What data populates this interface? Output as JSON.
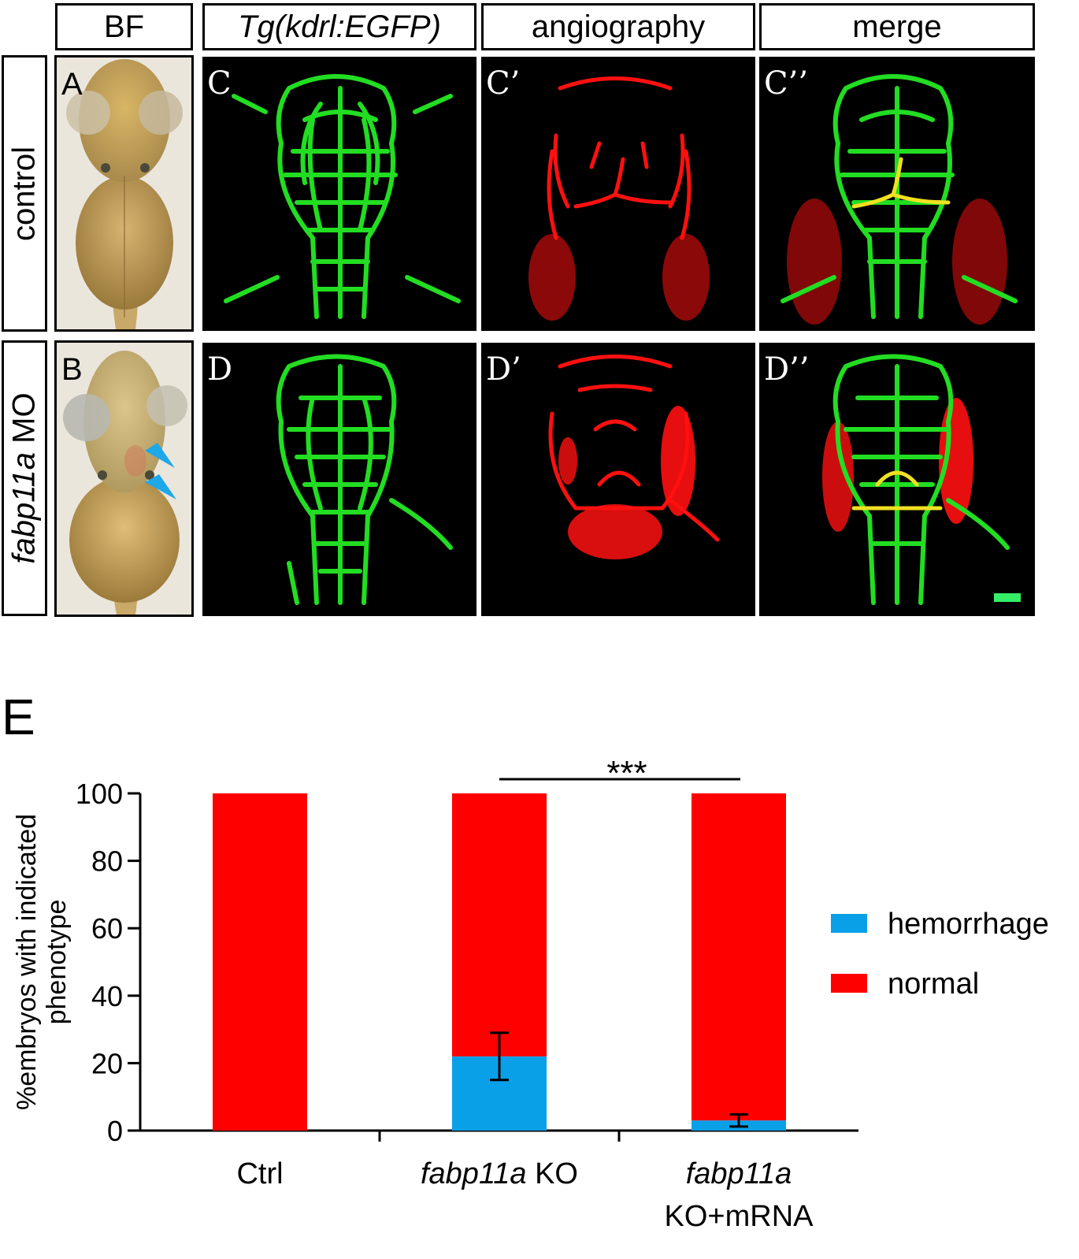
{
  "columns": {
    "bf": "BF",
    "tg": "Tg(kdrl:EGFP)",
    "angio": "angiography",
    "merge": "merge"
  },
  "rows": {
    "control": "control",
    "mo_gene": "fabp11a",
    "mo_suffix": " MO"
  },
  "panel_labels": {
    "A": "A",
    "B": "B",
    "C": "C",
    "C1": "C’",
    "C2": "C’’",
    "D": "D",
    "D1": "D’",
    "D2": "D’’"
  },
  "colors": {
    "gfp": "#22dd22",
    "angio": "#ff1010",
    "hemorrhage": "#0aa0e8",
    "normal": "#ff0000",
    "arrow": "#1ea8e8",
    "scalebar": "#33ee66"
  },
  "chart_data": {
    "type": "bar",
    "stacked": true,
    "panel_label": "E",
    "ylabel": "%embryos with indicated phenotype",
    "ylim": [
      0,
      100
    ],
    "yticks": [
      0,
      20,
      40,
      60,
      80,
      100
    ],
    "categories": [
      {
        "name": "Ctrl",
        "italic": "",
        "rest": "Ctrl",
        "line2": ""
      },
      {
        "name": "fabp11a KO",
        "italic": "fabp11a",
        "rest": " KO",
        "line2": ""
      },
      {
        "name": "fabp11a KO+mRNA",
        "italic": "fabp11a",
        "rest": "",
        "line2": "KO+mRNA"
      }
    ],
    "series": [
      {
        "name": "hemorrhage",
        "values": [
          0,
          22,
          3
        ],
        "error": [
          0,
          7,
          1.8
        ]
      },
      {
        "name": "normal",
        "values": [
          100,
          78,
          97
        ],
        "error": [
          0,
          0,
          0
        ]
      }
    ],
    "significance": {
      "between": [
        1,
        2
      ],
      "label": "***"
    },
    "legend": [
      "hemorrhage",
      "normal"
    ],
    "legend_position": "right"
  }
}
